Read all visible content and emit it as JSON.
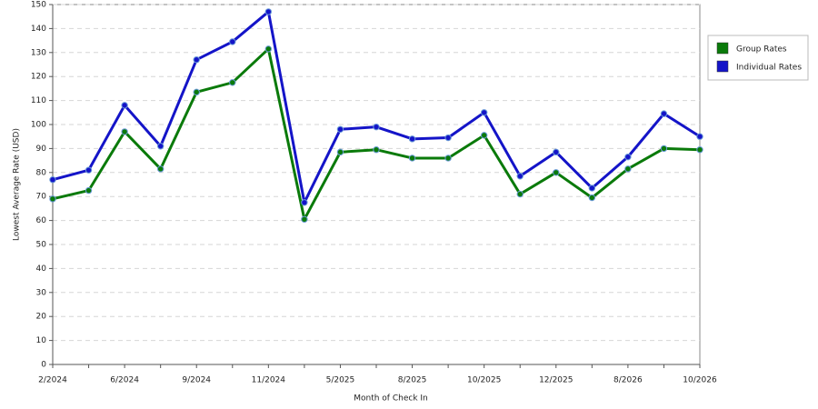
{
  "chart_data": {
    "type": "line",
    "x_label": "Month of Check In",
    "y_label": "Lowest Average Rate (USD)",
    "categories": [
      "2/2024",
      null,
      "6/2024",
      null,
      "9/2024",
      null,
      "11/2024",
      null,
      "5/2025",
      null,
      "8/2025",
      null,
      "10/2025",
      null,
      "12/2025",
      null,
      "8/2026",
      null,
      "10/2026"
    ],
    "series": [
      {
        "name": "Group Rates",
        "color": "#0a7a0a",
        "values": [
          69,
          72.5,
          97,
          81.5,
          113.5,
          117.5,
          131.5,
          60.5,
          88.5,
          89.5,
          86,
          86,
          95.5,
          71,
          80,
          69.5,
          81.5,
          90,
          89.5
        ]
      },
      {
        "name": "Individual Rates",
        "color": "#1414c8",
        "values": [
          77,
          81,
          108,
          91,
          127,
          134.5,
          147,
          67.5,
          98,
          99,
          94,
          94.5,
          105,
          78.5,
          88.5,
          73.5,
          86.5,
          104.5,
          95
        ]
      }
    ],
    "ylim": [
      0,
      150
    ],
    "yticks": [
      0,
      10,
      20,
      30,
      40,
      50,
      60,
      70,
      80,
      90,
      100,
      110,
      120,
      130,
      140,
      150
    ],
    "grid": true,
    "legend": "right"
  }
}
